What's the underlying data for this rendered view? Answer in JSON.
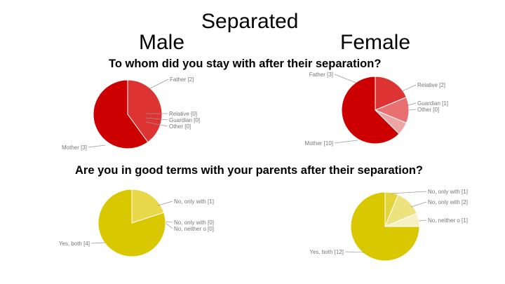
{
  "page": {
    "title": "Separated",
    "male_label": "Male",
    "female_label": "Female",
    "question_1": "To whom did you stay with after their separation?",
    "question_2": "Are you in good terms with your parents after their separation?"
  },
  "chart_data": [
    {
      "type": "pie",
      "group": "Male",
      "categories": [
        "Father [2]",
        "Relative [0]",
        "Guardian [0]",
        "Other [0]",
        "Mother [3]"
      ],
      "values": [
        2,
        0,
        0,
        0,
        3
      ],
      "colors": [
        "#dd3333",
        "#e87070",
        "#f0a5a5",
        "#f7cccc",
        "#cc0000"
      ]
    },
    {
      "type": "pie",
      "group": "Female",
      "categories": [
        "Father [3]",
        "Relative [2]",
        "Guardian [1]",
        "Other [0]",
        "Mother [10]"
      ],
      "values": [
        3,
        2,
        1,
        0,
        10
      ],
      "colors": [
        "#dd3333",
        "#e87070",
        "#f0a5a5",
        "#f7cccc",
        "#cc0000"
      ]
    },
    {
      "type": "pie",
      "group": "Male",
      "categories": [
        "No, only with [1]",
        "No, only with [0]",
        "No, neither o [0]",
        "Yes, both [4]"
      ],
      "values": [
        1,
        0,
        0,
        4
      ],
      "colors": [
        "#e8d84a",
        "#efe488",
        "#f6f0c4",
        "#d9c800"
      ]
    },
    {
      "type": "pie",
      "group": "Female",
      "categories": [
        "No, only with [1]",
        "No, only with [2]",
        "No, neither o [1]",
        "Yes, both [12]"
      ],
      "values": [
        1,
        2,
        1,
        12
      ],
      "colors": [
        "#e2d43a",
        "#ece27e",
        "#f6f0c4",
        "#d9c800"
      ]
    }
  ]
}
